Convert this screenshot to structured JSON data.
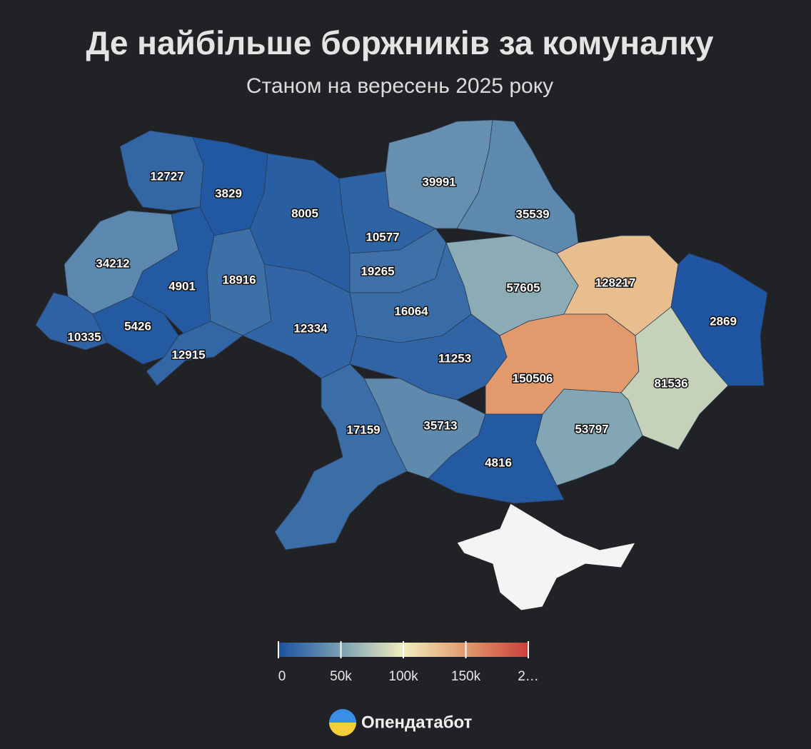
{
  "chart_data": {
    "type": "choropleth",
    "title": "Де найбільше боржників за комуналку",
    "subtitle": "Станом на вересень 2025 року",
    "values": [
      12727,
      3829,
      8005,
      10577,
      19265,
      39991,
      35539,
      34212,
      4901,
      18916,
      10335,
      5426,
      12915,
      12334,
      16064,
      11253,
      57605,
      128217,
      2869,
      150506,
      81536,
      53797,
      4816,
      35713,
      17159
    ],
    "clim": [
      0,
      200000
    ],
    "cticks": [
      0,
      {
        "value": 50000,
        "label": "50k"
      },
      {
        "value": 100000,
        "label": "100k"
      },
      {
        "value": 150000,
        "label": "150k"
      },
      {
        "value": 200000,
        "label": "2…"
      }
    ],
    "colorscale": [
      {
        "value": 0,
        "color": "#1a52a0"
      },
      {
        "value": 50000,
        "color": "#7aa0b4"
      },
      {
        "value": 100000,
        "color": "#f1edbc"
      },
      {
        "value": 150000,
        "color": "#e29a6c"
      },
      {
        "value": 200000,
        "color": "#c8403b"
      }
    ],
    "brand": "Опендатабот"
  }
}
